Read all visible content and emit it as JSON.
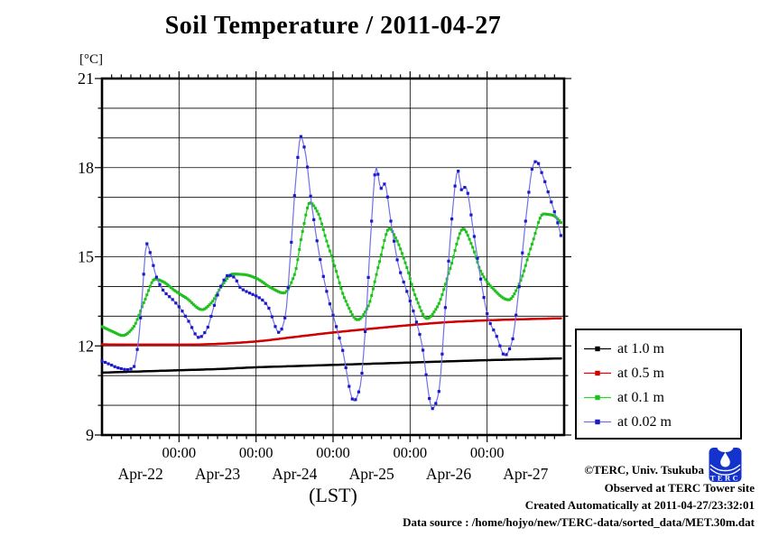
{
  "title": "Soil Temperature / 2011-04-27",
  "y_unit_label": "[°C]",
  "x_axis_label": "(LST)",
  "legend": {
    "items": [
      {
        "label": "at 1.0 m",
        "line_color": "#000000",
        "marker_color": "#000000"
      },
      {
        "label": "at 0.5 m",
        "line_color": "#f00000",
        "marker_color": "#d00000"
      },
      {
        "label": "at 0.1 m",
        "line_color": "#2ed32e",
        "marker_color": "#1fbf1f"
      },
      {
        "label": "at 0.02 m",
        "line_color": "#7070e8",
        "marker_color": "#1a1acc"
      }
    ]
  },
  "footer": {
    "credit": "©TERC, Univ. Tsukuba",
    "observed": "Observed at TERC Tower site",
    "created": "Created Automatically at 2011-04-27/23:32:01",
    "data_source": "Data source : /home/hojyo/new/TERC-data/sorted_data/MET.30m.dat",
    "logo_text": "TERC"
  },
  "chart_data": {
    "type": "line",
    "title": "Soil Temperature / 2011-04-27",
    "xlabel": "(LST)",
    "ylabel": "[°C]",
    "ylim": [
      9,
      21
    ],
    "y_major_ticks": [
      9,
      12,
      15,
      18,
      21
    ],
    "y_minor_step_deg": 1,
    "grid": true,
    "legend_position": "right",
    "x_unit": "days since 2011-04-22 00:00 LST",
    "x_range_days": [
      0,
      6
    ],
    "x_end_of_data_days": 5.979,
    "x_minor_tick_hours": 3,
    "midnight_label": "00:00",
    "day_labels": [
      "Apr-22",
      "Apr-23",
      "Apr-24",
      "Apr-25",
      "Apr-26",
      "Apr-27"
    ],
    "sampling_interval_hours": 0.5,
    "series": [
      {
        "name": "at 1.0 m",
        "depth_m": 1.0,
        "line_color": "#000000",
        "marker_color": "#000000",
        "line_width": 2.0,
        "marker_size": 2.4,
        "marker_every": 1,
        "anchors": [
          [
            0,
            11.1
          ],
          [
            0.5,
            11.14
          ],
          [
            1.0,
            11.18
          ],
          [
            1.5,
            11.22
          ],
          [
            2.0,
            11.28
          ],
          [
            2.5,
            11.32
          ],
          [
            3.0,
            11.36
          ],
          [
            3.5,
            11.4
          ],
          [
            4.0,
            11.44
          ],
          [
            4.5,
            11.48
          ],
          [
            5.0,
            11.52
          ],
          [
            5.5,
            11.55
          ],
          [
            5.979,
            11.58
          ]
        ]
      },
      {
        "name": "at 0.5 m",
        "depth_m": 0.5,
        "line_color": "#f00000",
        "marker_color": "#d00000",
        "line_width": 2.2,
        "marker_size": 2.4,
        "marker_every": 1,
        "anchors": [
          [
            0,
            12.05
          ],
          [
            0.5,
            12.04
          ],
          [
            1.0,
            12.04
          ],
          [
            1.3,
            12.05
          ],
          [
            1.6,
            12.08
          ],
          [
            2.0,
            12.15
          ],
          [
            2.5,
            12.3
          ],
          [
            3.0,
            12.45
          ],
          [
            3.5,
            12.58
          ],
          [
            4.0,
            12.7
          ],
          [
            4.5,
            12.8
          ],
          [
            5.0,
            12.86
          ],
          [
            5.5,
            12.9
          ],
          [
            5.979,
            12.93
          ]
        ]
      },
      {
        "name": "at 0.1 m",
        "depth_m": 0.1,
        "line_color": "#2ed32e",
        "marker_color": "#1fbf1f",
        "line_width": 1.4,
        "marker_size": 3.0,
        "marker_every": 1,
        "anchors": [
          [
            0,
            12.65
          ],
          [
            0.14,
            12.48
          ],
          [
            0.27,
            12.35
          ],
          [
            0.4,
            12.6
          ],
          [
            0.55,
            13.5
          ],
          [
            0.69,
            14.25
          ],
          [
            0.8,
            14.15
          ],
          [
            0.95,
            13.85
          ],
          [
            1.1,
            13.6
          ],
          [
            1.3,
            13.22
          ],
          [
            1.42,
            13.45
          ],
          [
            1.55,
            14.0
          ],
          [
            1.7,
            14.42
          ],
          [
            1.85,
            14.4
          ],
          [
            2.0,
            14.28
          ],
          [
            2.2,
            13.95
          ],
          [
            2.36,
            13.78
          ],
          [
            2.5,
            14.4
          ],
          [
            2.6,
            15.8
          ],
          [
            2.7,
            16.82
          ],
          [
            2.8,
            16.5
          ],
          [
            2.92,
            15.5
          ],
          [
            3.02,
            14.7
          ],
          [
            3.15,
            13.6
          ],
          [
            3.32,
            12.88
          ],
          [
            3.45,
            13.3
          ],
          [
            3.6,
            14.8
          ],
          [
            3.73,
            15.95
          ],
          [
            3.82,
            15.6
          ],
          [
            3.95,
            14.7
          ],
          [
            4.08,
            13.6
          ],
          [
            4.22,
            12.92
          ],
          [
            4.35,
            13.3
          ],
          [
            4.52,
            14.6
          ],
          [
            4.69,
            15.94
          ],
          [
            4.8,
            15.4
          ],
          [
            4.92,
            14.5
          ],
          [
            5.05,
            14.0
          ],
          [
            5.28,
            13.55
          ],
          [
            5.42,
            14.1
          ],
          [
            5.58,
            15.4
          ],
          [
            5.73,
            16.44
          ],
          [
            5.85,
            16.4
          ],
          [
            5.979,
            16.1
          ]
        ]
      },
      {
        "name": "at 0.02 m",
        "depth_m": 0.02,
        "line_color": "#7070e8",
        "marker_color": "#1a1acc",
        "line_width": 1.2,
        "marker_size": 3.2,
        "marker_every": 2,
        "anchors": [
          [
            0,
            11.49
          ],
          [
            0.1,
            11.38
          ],
          [
            0.21,
            11.26
          ],
          [
            0.33,
            11.2
          ],
          [
            0.41,
            11.28
          ],
          [
            0.47,
            12.1
          ],
          [
            0.52,
            13.6
          ],
          [
            0.58,
            15.44
          ],
          [
            0.63,
            15.1
          ],
          [
            0.7,
            14.37
          ],
          [
            0.8,
            13.85
          ],
          [
            0.92,
            13.55
          ],
          [
            1.02,
            13.25
          ],
          [
            1.12,
            12.85
          ],
          [
            1.26,
            12.28
          ],
          [
            1.36,
            12.55
          ],
          [
            1.45,
            13.3
          ],
          [
            1.55,
            14.05
          ],
          [
            1.64,
            14.38
          ],
          [
            1.72,
            14.3
          ],
          [
            1.8,
            13.95
          ],
          [
            1.9,
            13.8
          ],
          [
            2.0,
            13.68
          ],
          [
            2.08,
            13.55
          ],
          [
            2.16,
            13.3
          ],
          [
            2.3,
            12.45
          ],
          [
            2.38,
            13.0
          ],
          [
            2.45,
            15.2
          ],
          [
            2.52,
            17.7
          ],
          [
            2.58,
            19.05
          ],
          [
            2.64,
            18.5
          ],
          [
            2.72,
            16.8
          ],
          [
            2.82,
            15.1
          ],
          [
            2.92,
            13.8
          ],
          [
            3.02,
            12.85
          ],
          [
            3.12,
            11.9
          ],
          [
            3.27,
            10.15
          ],
          [
            3.35,
            10.6
          ],
          [
            3.42,
            12.6
          ],
          [
            3.5,
            16.2
          ],
          [
            3.56,
            18.02
          ],
          [
            3.62,
            17.3
          ],
          [
            3.67,
            17.45
          ],
          [
            3.75,
            16.2
          ],
          [
            3.85,
            14.7
          ],
          [
            3.95,
            13.9
          ],
          [
            4.05,
            13.1
          ],
          [
            4.15,
            12.1
          ],
          [
            4.29,
            9.89
          ],
          [
            4.37,
            10.4
          ],
          [
            4.45,
            13.0
          ],
          [
            4.55,
            16.5
          ],
          [
            4.62,
            17.9
          ],
          [
            4.67,
            17.25
          ],
          [
            4.72,
            17.35
          ],
          [
            4.82,
            15.9
          ],
          [
            4.92,
            14.2
          ],
          [
            5.02,
            12.9
          ],
          [
            5.12,
            12.35
          ],
          [
            5.23,
            11.68
          ],
          [
            5.32,
            12.1
          ],
          [
            5.4,
            13.6
          ],
          [
            5.5,
            16.2
          ],
          [
            5.6,
            18.1
          ],
          [
            5.64,
            18.22
          ],
          [
            5.72,
            17.75
          ],
          [
            5.82,
            16.95
          ],
          [
            5.9,
            16.3
          ],
          [
            5.979,
            15.5
          ]
        ]
      }
    ]
  }
}
